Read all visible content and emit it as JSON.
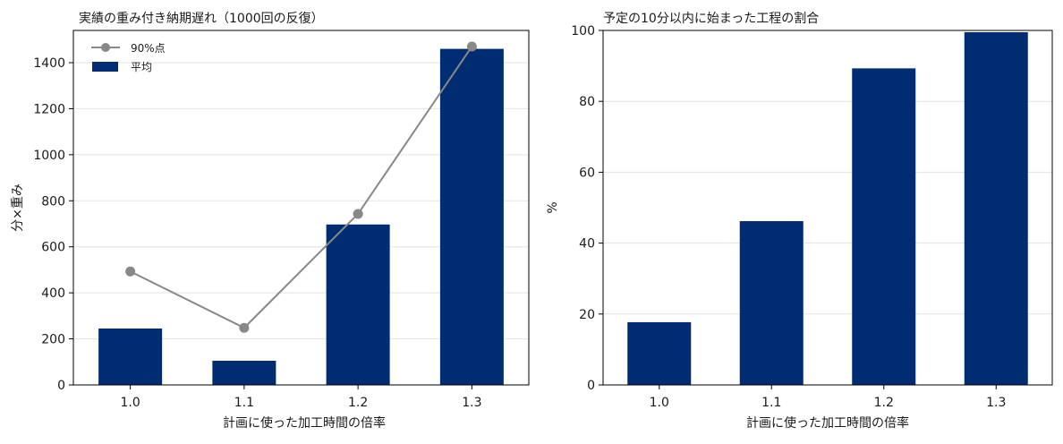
{
  "chart_data": [
    {
      "type": "bar",
      "title": "実績の重み付き納期遅れ（1000回の反復）",
      "xlabel": "計画に使った加工時間の倍率",
      "ylabel": "分×重み",
      "categories": [
        "1.0",
        "1.1",
        "1.2",
        "1.3"
      ],
      "ylim": [
        0,
        1540
      ],
      "yticks": [
        0,
        200,
        400,
        600,
        800,
        1000,
        1200,
        1400
      ],
      "grid": true,
      "legend_position": "top-left",
      "series": [
        {
          "name": "平均",
          "kind": "bar",
          "color": "#002D72",
          "values": [
            245,
            105,
            697,
            1460
          ]
        },
        {
          "name": "90%点",
          "kind": "line",
          "color": "#888888",
          "values": [
            493,
            248,
            743,
            1470
          ]
        }
      ]
    },
    {
      "type": "bar",
      "title": "予定の10分以内に始まった工程の割合",
      "xlabel": "計画に使った加工時間の倍率",
      "ylabel": "%",
      "categories": [
        "1.0",
        "1.1",
        "1.2",
        "1.3"
      ],
      "ylim": [
        0,
        100
      ],
      "yticks": [
        0,
        20,
        40,
        60,
        80,
        100
      ],
      "grid": true,
      "series": [
        {
          "kind": "bar",
          "color": "#002D72",
          "values": [
            17.7,
            46.2,
            89.3,
            99.5
          ]
        }
      ]
    }
  ]
}
